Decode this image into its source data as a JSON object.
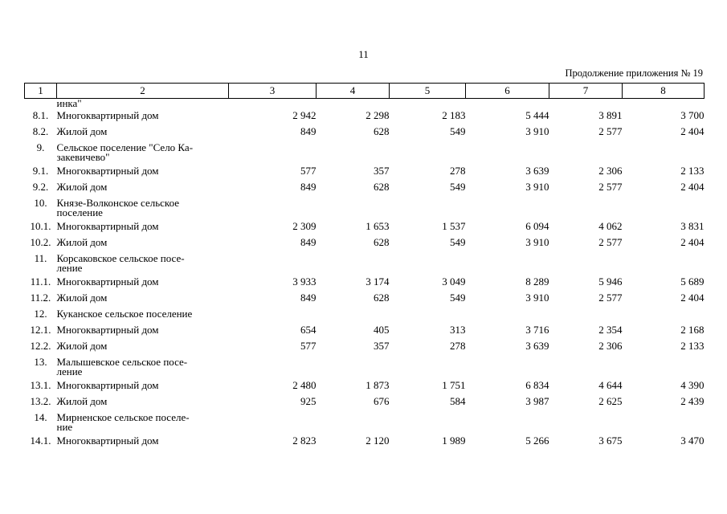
{
  "page_number": "11",
  "appendix_caption": "Продолжение приложения № 19",
  "header": [
    "1",
    "2",
    "3",
    "4",
    "5",
    "6",
    "7",
    "8"
  ],
  "continuation_text": "инка\"",
  "rows": [
    {
      "num": "8.1.",
      "name": "Многоквартирный дом",
      "v": [
        "2 942",
        "2 298",
        "2 183",
        "5 444",
        "3 891",
        "3 700"
      ]
    },
    {
      "num": "8.2.",
      "name": "Жилой дом",
      "v": [
        "849",
        "628",
        "549",
        "3 910",
        "2 577",
        "2 404"
      ]
    },
    {
      "num": "9.",
      "name": "Сельское поселение \"Село Ка-\nзакевичево\"",
      "v": [
        "",
        "",
        "",
        "",
        "",
        ""
      ]
    },
    {
      "num": "9.1.",
      "name": "Многоквартирный дом",
      "v": [
        "577",
        "357",
        "278",
        "3 639",
        "2 306",
        "2 133"
      ]
    },
    {
      "num": "9.2.",
      "name": "Жилой дом",
      "v": [
        "849",
        "628",
        "549",
        "3 910",
        "2 577",
        "2 404"
      ]
    },
    {
      "num": "10.",
      "name": "Князе-Волконское сельское\nпоселение",
      "v": [
        "",
        "",
        "",
        "",
        "",
        ""
      ]
    },
    {
      "num": "10.1.",
      "name": "Многоквартирный дом",
      "v": [
        "2 309",
        "1 653",
        "1 537",
        "6 094",
        "4 062",
        "3 831"
      ]
    },
    {
      "num": "10.2.",
      "name": "Жилой дом",
      "v": [
        "849",
        "628",
        "549",
        "3 910",
        "2 577",
        "2 404"
      ]
    },
    {
      "num": "11.",
      "name": "Корсаковское сельское посе-\nление",
      "v": [
        "",
        "",
        "",
        "",
        "",
        ""
      ]
    },
    {
      "num": "11.1.",
      "name": "Многоквартирный дом",
      "v": [
        "3 933",
        "3 174",
        "3 049",
        "8 289",
        "5 946",
        "5 689"
      ]
    },
    {
      "num": "11.2.",
      "name": "Жилой дом",
      "v": [
        "849",
        "628",
        "549",
        "3 910",
        "2 577",
        "2 404"
      ]
    },
    {
      "num": "12.",
      "name": "Куканское сельское поселение",
      "v": [
        "",
        "",
        "",
        "",
        "",
        ""
      ]
    },
    {
      "num": "12.1.",
      "name": "Многоквартирный дом",
      "v": [
        "654",
        "405",
        "313",
        "3 716",
        "2 354",
        "2 168"
      ]
    },
    {
      "num": "12.2.",
      "name": "Жилой дом",
      "v": [
        "577",
        "357",
        "278",
        "3 639",
        "2 306",
        "2 133"
      ]
    },
    {
      "num": "13.",
      "name": "Малышевское сельское посе-\nление",
      "v": [
        "",
        "",
        "",
        "",
        "",
        ""
      ]
    },
    {
      "num": "13.1.",
      "name": "Многоквартирный дом",
      "v": [
        "2 480",
        "1 873",
        "1 751",
        "6 834",
        "4 644",
        "4 390"
      ]
    },
    {
      "num": "13.2.",
      "name": "Жилой дом",
      "v": [
        "925",
        "676",
        "584",
        "3 987",
        "2 625",
        "2 439"
      ]
    },
    {
      "num": "14.",
      "name": "Мирненское сельское поселе-\nние",
      "v": [
        "",
        "",
        "",
        "",
        "",
        ""
      ]
    },
    {
      "num": "14.1.",
      "name": "Многоквартирный дом",
      "v": [
        "2 823",
        "2 120",
        "1 989",
        "5 266",
        "3 675",
        "3 470"
      ]
    }
  ]
}
